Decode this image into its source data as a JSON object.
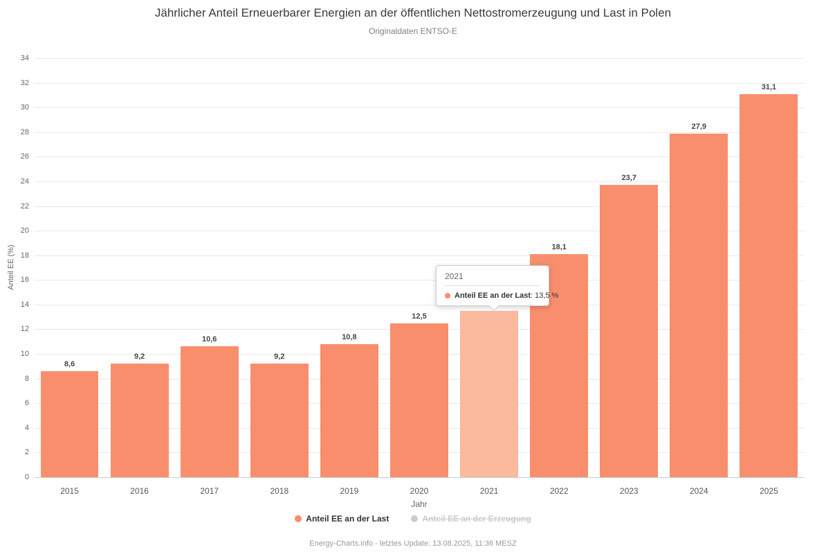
{
  "chart": {
    "title": "Jährlicher Anteil Erneuerbarer Energien an der öffentlichen Nettostromerzeugung und Last in Polen",
    "subtitle": "Originaldaten ENTSO-E",
    "ylabel": "Anteil EE (%)",
    "xlabel": "Jahr",
    "footer": "Energy-Charts.info - letztes Update: 13.08.2025, 11:36 MESZ"
  },
  "chart_data": {
    "type": "bar",
    "title": "Jährlicher Anteil Erneuerbarer Energien an der öffentlichen Nettostromerzeugung und Last in Polen",
    "subtitle": "Originaldaten ENTSO-E",
    "xlabel": "Jahr",
    "ylabel": "Anteil EE (%)",
    "ylim": [
      0,
      34
    ],
    "ytick_step": 2,
    "grid": true,
    "legend_position": "bottom",
    "categories": [
      "2015",
      "2016",
      "2017",
      "2018",
      "2019",
      "2020",
      "2021",
      "2022",
      "2023",
      "2024",
      "2025"
    ],
    "series": [
      {
        "name": "Anteil EE an der Last",
        "values": [
          8.6,
          9.2,
          10.6,
          9.2,
          10.8,
          12.5,
          13.5,
          18.1,
          23.7,
          27.9,
          31.1
        ],
        "labels": [
          "8,6",
          "9,2",
          "10,6",
          "9,2",
          "10,8",
          "12,5",
          "13,5",
          "18,1",
          "23,7",
          "27,9",
          "31,1"
        ],
        "color": "#f98e6c",
        "active": true
      },
      {
        "name": "Anteil EE an der Erzeugung",
        "values": [],
        "labels": [],
        "color": "#cccccc",
        "active": false
      }
    ],
    "highlight_index": 6,
    "highlight_color": "#fbb99e"
  },
  "tooltip": {
    "category": "2021",
    "series_label": "Anteil EE an der Last",
    "value_text": " :  13,5 %",
    "dot_color": "#f98e6c"
  },
  "legend": {
    "items": [
      {
        "label": "Anteil EE an der Last",
        "color": "#f98e6c",
        "active": true
      },
      {
        "label": "Anteil EE an der Erzeugung",
        "color": "#cccccc",
        "active": false
      }
    ]
  }
}
